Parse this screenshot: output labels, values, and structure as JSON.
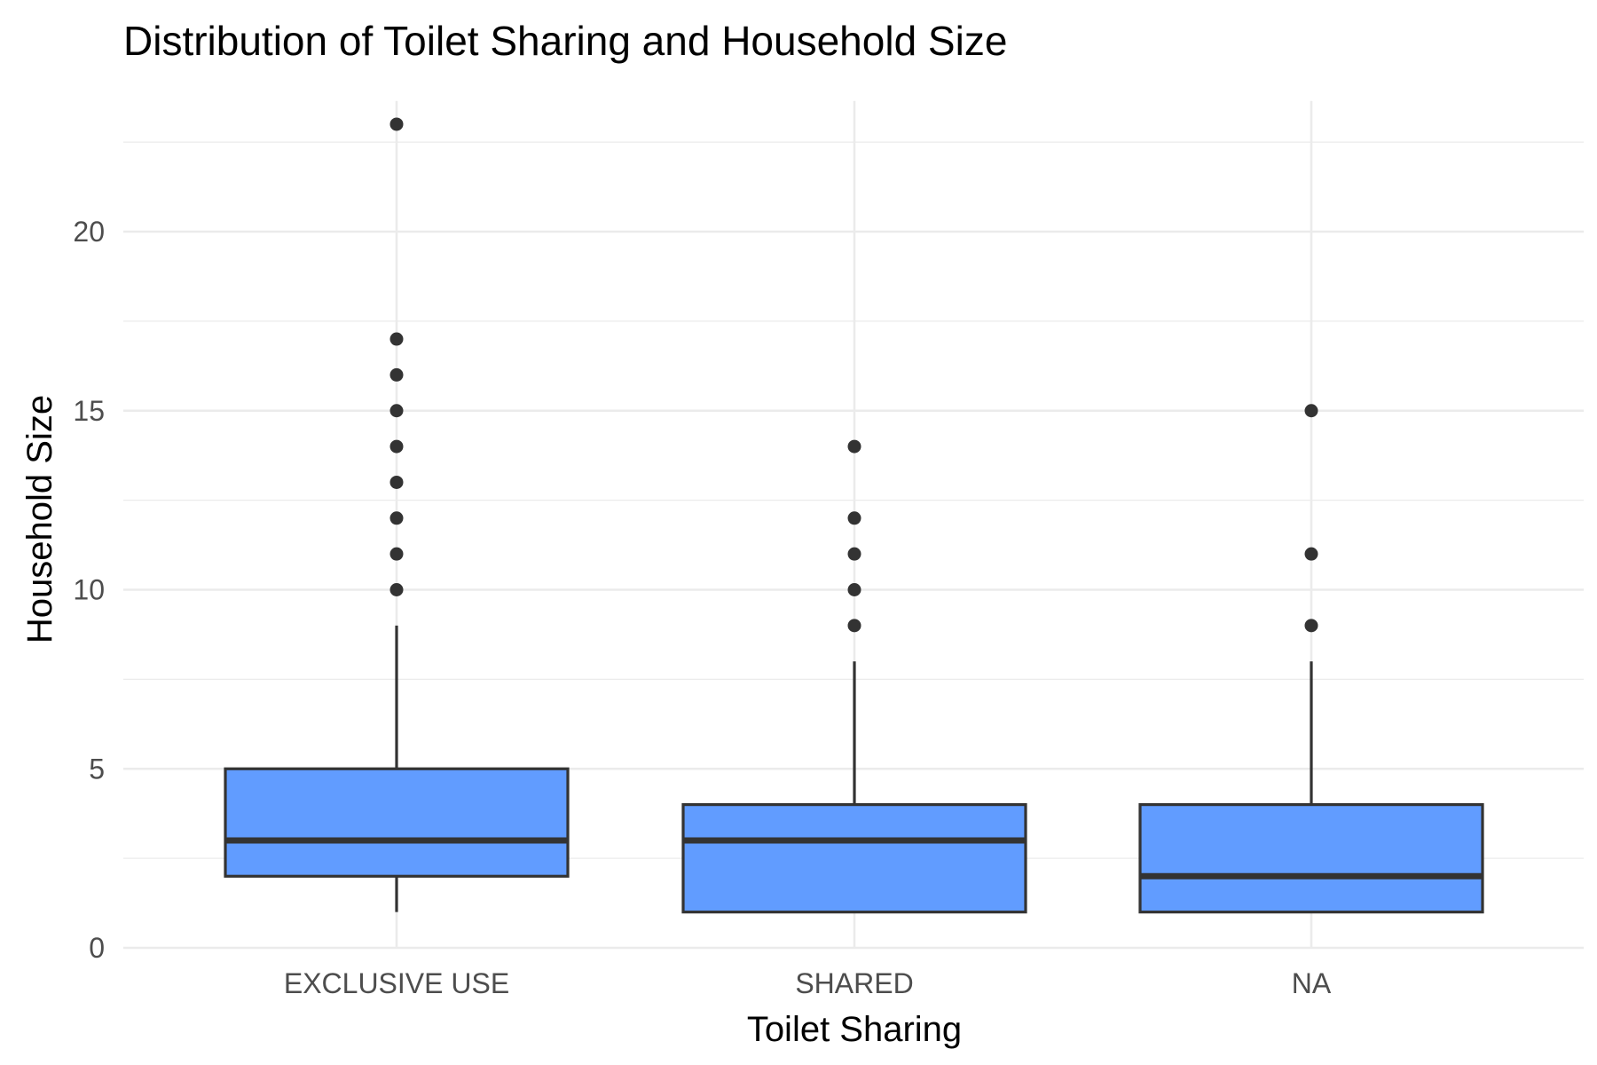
{
  "chart_data": {
    "type": "boxplot",
    "title": "Distribution of Toilet Sharing and Household Size",
    "xlabel": "Toilet Sharing",
    "ylabel": "Household Size",
    "ylim": [
      0,
      23.5
    ],
    "y_ticks": [
      0,
      5,
      10,
      15,
      20
    ],
    "grid": true,
    "fill_color": "#619cff",
    "categories": [
      "EXCLUSIVE USE",
      "SHARED",
      "NA"
    ],
    "boxes": [
      {
        "category": "EXCLUSIVE USE",
        "whisker_low": 1,
        "q1": 2,
        "median": 3,
        "q3": 5,
        "whisker_high": 9,
        "outliers": [
          10,
          11,
          12,
          13,
          14,
          15,
          16,
          17,
          23
        ]
      },
      {
        "category": "SHARED",
        "whisker_low": 1,
        "q1": 1,
        "median": 3,
        "q3": 4,
        "whisker_high": 8,
        "outliers": [
          9,
          10,
          11,
          12,
          14
        ]
      },
      {
        "category": "NA",
        "whisker_low": 1,
        "q1": 1,
        "median": 2,
        "q3": 4,
        "whisker_high": 8,
        "outliers": [
          9,
          11,
          15
        ]
      }
    ]
  }
}
